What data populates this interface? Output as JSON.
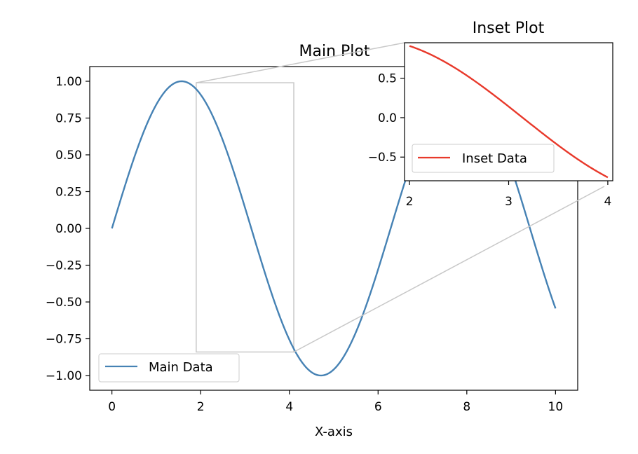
{
  "colors": {
    "main_line": "#4682b4",
    "inset_line": "#e8392b",
    "indicator": "#c8c8c8",
    "axes": "#000000"
  },
  "chart_data": [
    {
      "type": "line",
      "title": "Main Plot",
      "xlabel": "X-axis",
      "ylabel": "",
      "function": "sin(x)",
      "xlim": [
        -0.5,
        10.5
      ],
      "ylim": [
        -1.1,
        1.1
      ],
      "xticks": [
        0,
        2,
        4,
        6,
        8,
        10
      ],
      "yticks": [
        1.0,
        0.75,
        0.5,
        0.25,
        0.0,
        -0.25,
        -0.5,
        -0.75,
        -1.0
      ],
      "xtick_labels": [
        "0",
        "2",
        "4",
        "6",
        "8",
        "10"
      ],
      "ytick_labels": [
        "1.00",
        "0.75",
        "0.50",
        "0.25",
        "0.00",
        "−0.25",
        "−0.50",
        "−0.75",
        "−1.00"
      ],
      "series": [
        {
          "name": "Main Data",
          "color": "#4682b4",
          "x": [
            0,
            0.5,
            1,
            1.5,
            2,
            2.5,
            3,
            3.5,
            4,
            4.5,
            5,
            5.5,
            6,
            6.5,
            7,
            7.5,
            8,
            8.5,
            9,
            9.5,
            10
          ],
          "y": [
            0.0,
            0.48,
            0.84,
            1.0,
            0.91,
            0.6,
            0.14,
            -0.35,
            -0.76,
            -0.98,
            -0.96,
            -0.71,
            -0.28,
            0.22,
            0.66,
            0.94,
            0.99,
            0.8,
            0.41,
            -0.08,
            -0.54
          ]
        }
      ],
      "legend": {
        "position": "lower-left",
        "entries": [
          "Main Data"
        ]
      },
      "grid": false,
      "zoom_region": {
        "x": [
          1.9,
          4.1
        ],
        "y": [
          -0.84,
          0.99
        ]
      }
    },
    {
      "type": "line",
      "title": "Inset Plot",
      "xlabel": "",
      "ylabel": "",
      "function": "sin(x)",
      "xlim": [
        1.95,
        4.05
      ],
      "ylim": [
        -0.8,
        0.95
      ],
      "xticks": [
        2,
        3,
        4
      ],
      "yticks": [
        0.5,
        0.0,
        -0.5
      ],
      "xtick_labels": [
        "2",
        "3",
        "4"
      ],
      "ytick_labels": [
        "0.5",
        "0.0",
        "−0.5"
      ],
      "series": [
        {
          "name": "Inset Data",
          "color": "#e8392b",
          "x": [
            2.0,
            2.25,
            2.5,
            2.75,
            3.0,
            3.25,
            3.5,
            3.75,
            4.0
          ],
          "y": [
            0.91,
            0.78,
            0.6,
            0.38,
            0.14,
            -0.11,
            -0.35,
            -0.57,
            -0.76
          ]
        }
      ],
      "legend": {
        "position": "lower-left",
        "entries": [
          "Inset Data"
        ]
      },
      "grid": false
    }
  ]
}
